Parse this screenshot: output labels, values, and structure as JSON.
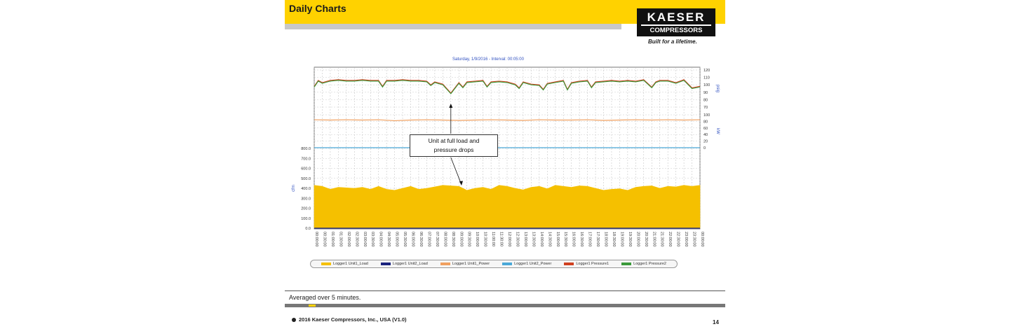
{
  "slide": {
    "title": "Daily Charts",
    "logo_top": "KAESER",
    "logo_bottom": "COMPRESSORS",
    "tagline": "Built for a lifetime.",
    "caption": "Averaged over 5 minutes.",
    "copyright": "2016 Kaeser Compressors, Inc., USA (V1.0)",
    "page_number": "14"
  },
  "chart_data": {
    "type": "area",
    "title": "Saturday, 1/9/2016 - Interval: 00:05:00",
    "annotation_line1": "Unit at full load and",
    "annotation_line2": "pressure drops",
    "left_axis": {
      "label": "cfm",
      "ylim": [
        0,
        800
      ],
      "ticks": [
        "800.0",
        "700.0",
        "600.0",
        "500.0",
        "400.0",
        "300.0",
        "200.0",
        "100.0",
        "0.0"
      ]
    },
    "right_axis_psig": {
      "label": "psig",
      "ylim": [
        70,
        120
      ],
      "ticks": [
        "120",
        "110",
        "100",
        "90",
        "80",
        "70"
      ]
    },
    "right_axis_kw": {
      "label": "kW",
      "ylim": [
        0,
        100
      ],
      "ticks": [
        "100",
        "80",
        "60",
        "40",
        "20",
        "0"
      ]
    },
    "x_ticks": [
      "00:00:00",
      "00:30:00",
      "01:00:00",
      "01:30:00",
      "02:00:00",
      "02:30:00",
      "03:00:00",
      "03:30:00",
      "04:00:00",
      "04:30:00",
      "05:00:00",
      "05:30:00",
      "06:00:00",
      "06:30:00",
      "07:00:00",
      "07:30:00",
      "08:00:00",
      "08:30:00",
      "09:00:00",
      "09:30:00",
      "10:00:00",
      "10:30:00",
      "11:00:00",
      "11:30:00",
      "12:00:00",
      "12:30:00",
      "13:00:00",
      "13:30:00",
      "14:00:00",
      "14:30:00",
      "15:00:00",
      "15:30:00",
      "16:00:00",
      "16:30:00",
      "17:00:00",
      "17:30:00",
      "18:00:00",
      "18:30:00",
      "19:00:00",
      "19:30:00",
      "20:00:00",
      "20:30:00",
      "21:00:00",
      "21:30:00",
      "22:00:00",
      "22:30:00",
      "23:00:00",
      "23:30:00",
      "00:00:00"
    ],
    "series": [
      {
        "name": "Logger1 Unit1_Load",
        "color": "#f5c000",
        "axis": "cfm",
        "hours": [
          0,
          0.5,
          1,
          1.5,
          2,
          2.5,
          3,
          3.5,
          4,
          4.5,
          5,
          5.5,
          6,
          6.5,
          7,
          7.5,
          8,
          8.5,
          9,
          9.5,
          10,
          10.5,
          11,
          11.5,
          12,
          12.5,
          13,
          13.5,
          14,
          14.5,
          15,
          15.5,
          16,
          16.5,
          17,
          17.5,
          18,
          18.5,
          19,
          19.5,
          20,
          20.5,
          21,
          21.5,
          22,
          22.5,
          23,
          23.5,
          24
        ],
        "values": [
          430,
          420,
          390,
          410,
          405,
          400,
          410,
          390,
          420,
          390,
          380,
          400,
          420,
          390,
          400,
          415,
          430,
          425,
          420,
          380,
          400,
          410,
          390,
          430,
          420,
          400,
          385,
          410,
          420,
          395,
          430,
          420,
          410,
          425,
          420,
          400,
          380,
          390,
          395,
          380,
          410,
          420,
          425,
          400,
          420,
          415,
          430,
          420,
          430
        ]
      },
      {
        "name": "Logger1 Unit2_Load",
        "color": "#1a237e",
        "axis": "cfm",
        "hours": [
          0,
          24
        ],
        "values": [
          0,
          0
        ]
      },
      {
        "name": "Logger1 Unit1_Power",
        "color": "#f0a060",
        "axis": "kW",
        "hours": [
          0,
          1,
          2,
          3,
          4,
          5,
          6,
          7,
          8,
          9,
          10,
          11,
          12,
          13,
          14,
          15,
          16,
          17,
          18,
          19,
          20,
          21,
          22,
          23,
          24
        ],
        "values": [
          85,
          84,
          85,
          84,
          85,
          82,
          84,
          85,
          84,
          83,
          84,
          85,
          84,
          83,
          85,
          84,
          84,
          85,
          83,
          84,
          85,
          84,
          85,
          84,
          85
        ]
      },
      {
        "name": "Logger1 Unit2_Power",
        "color": "#4aa8d8",
        "axis": "kW",
        "hours": [
          0,
          24
        ],
        "values": [
          0,
          0
        ]
      },
      {
        "name": "Logger1 Pressure1",
        "color": "#d04020",
        "axis": "psig",
        "hours": [
          0,
          0.25,
          0.5,
          1,
          1.5,
          2,
          2.5,
          3,
          3.5,
          4,
          4.25,
          4.5,
          5,
          5.5,
          6,
          6.5,
          7,
          7.25,
          7.5,
          8,
          8.25,
          8.5,
          8.75,
          9,
          9.25,
          9.5,
          10,
          10.5,
          10.75,
          11,
          11.5,
          12,
          12.5,
          12.75,
          13,
          13.5,
          14,
          14.25,
          14.5,
          15,
          15.5,
          15.75,
          16,
          16.5,
          17,
          17.25,
          17.5,
          18,
          18.5,
          19,
          19.5,
          20,
          20.5,
          21,
          21.25,
          21.5,
          22,
          22.5,
          23,
          23.5,
          24
        ],
        "values": [
          98,
          106,
          103,
          106,
          107,
          106,
          106,
          107,
          106,
          106,
          98,
          106,
          106,
          107,
          106,
          106,
          105,
          100,
          104,
          101,
          95,
          89,
          96,
          103,
          97,
          104,
          105,
          106,
          98,
          104,
          105,
          104,
          101,
          96,
          104,
          101,
          100,
          94,
          102,
          104,
          106,
          94,
          103,
          105,
          106,
          97,
          104,
          105,
          106,
          105,
          106,
          105,
          107,
          97,
          104,
          106,
          106,
          103,
          107,
          96,
          98
        ]
      },
      {
        "name": "Logger1 Pressure2",
        "color": "#3a9a3a",
        "axis": "psig",
        "hours": [
          0,
          0.25,
          0.5,
          1,
          1.5,
          2,
          2.5,
          3,
          3.5,
          4,
          4.25,
          4.5,
          5,
          5.5,
          6,
          6.5,
          7,
          7.25,
          7.5,
          8,
          8.25,
          8.5,
          8.75,
          9,
          9.25,
          9.5,
          10,
          10.5,
          10.75,
          11,
          11.5,
          12,
          12.5,
          12.75,
          13,
          13.5,
          14,
          14.25,
          14.5,
          15,
          15.5,
          15.75,
          16,
          16.5,
          17,
          17.25,
          17.5,
          18,
          18.5,
          19,
          19.5,
          20,
          20.5,
          21,
          21.25,
          21.5,
          22,
          22.5,
          23,
          23.5,
          24
        ],
        "values": [
          97,
          105,
          102,
          105,
          106,
          105,
          105,
          106,
          105,
          105,
          97,
          105,
          105,
          106,
          105,
          105,
          104,
          99,
          103,
          100,
          94,
          88,
          95,
          102,
          96,
          103,
          104,
          105,
          97,
          103,
          104,
          103,
          100,
          95,
          103,
          100,
          99,
          93,
          101,
          103,
          105,
          93,
          102,
          104,
          105,
          96,
          103,
          104,
          105,
          104,
          105,
          104,
          106,
          96,
          103,
          105,
          105,
          102,
          106,
          95,
          97
        ]
      }
    ]
  }
}
